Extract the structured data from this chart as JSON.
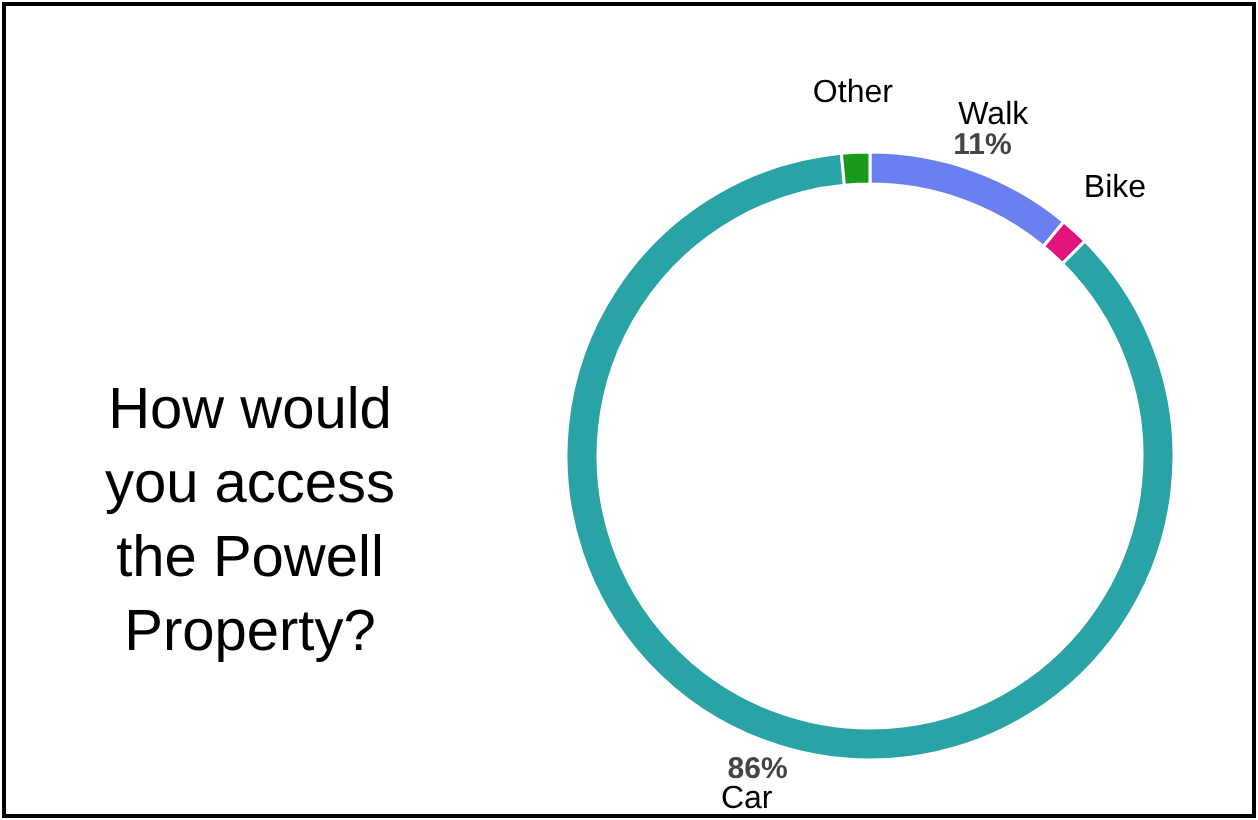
{
  "chart_data": {
    "type": "donut",
    "title": "How would you access the Powell Property?",
    "categories": [
      "Walk",
      "Bike",
      "Car",
      "Other"
    ],
    "values": [
      11,
      1.5,
      86,
      1.5
    ],
    "value_labels": [
      "11%",
      null,
      "86%",
      null
    ],
    "colors": [
      "#6b80f0",
      "#e2137f",
      "#2aa3a6",
      "#1a9a1a"
    ]
  }
}
